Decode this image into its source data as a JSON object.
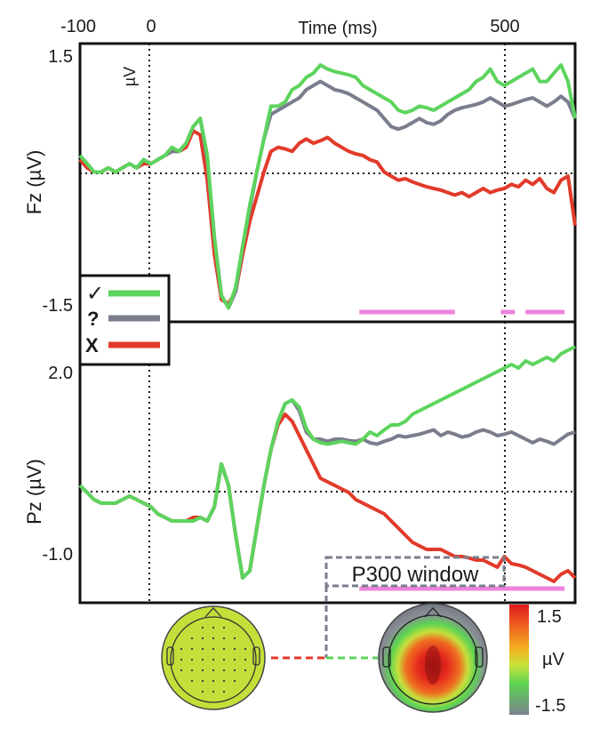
{
  "chart_data": [
    {
      "type": "line",
      "ylabel": "Fz (µV)",
      "unit_label": "µV",
      "xlabel": "Time (ms)",
      "xlim": [
        -100,
        600
      ],
      "ylim": [
        -1.62,
        1.76
      ],
      "x_ticks": [
        -100,
        0,
        500
      ],
      "x_tick_labels": [
        "-100",
        "0",
        "500"
      ],
      "y_tick_labels": [
        {
          "value": 1.5,
          "label": "1.5"
        },
        {
          "value": -1.5,
          "label": "-1.5"
        }
      ],
      "grid": "dotted lines at x=0, x=500 and y=0",
      "legend": {
        "placement": "bottom-left",
        "entries": [
          {
            "symbol": "✓",
            "color": "#5dd45d"
          },
          {
            "symbol": "?",
            "color": "#7a7d8c"
          },
          {
            "symbol": "X",
            "color": "#e23a2a"
          }
        ]
      },
      "x": [
        -100,
        -90,
        -80,
        -70,
        -60,
        -50,
        -40,
        -30,
        -20,
        -10,
        0,
        10,
        20,
        30,
        40,
        50,
        60,
        70,
        80,
        90,
        100,
        110,
        120,
        130,
        140,
        150,
        160,
        170,
        180,
        190,
        200,
        210,
        220,
        230,
        240,
        250,
        260,
        270,
        280,
        290,
        300,
        310,
        320,
        330,
        340,
        350,
        360,
        370,
        380,
        390,
        400,
        410,
        420,
        430,
        440,
        450,
        460,
        470,
        480,
        490,
        500,
        510,
        520,
        530,
        540,
        550,
        560,
        570,
        580,
        590,
        600
      ],
      "series": [
        {
          "symbol": "✓",
          "color": "#5dd45d",
          "values": [
            0.4,
            0.3,
            0.2,
            0.2,
            0.25,
            0.2,
            0.25,
            0.3,
            0.25,
            0.35,
            0.3,
            0.35,
            0.4,
            0.5,
            0.45,
            0.55,
            0.75,
            0.85,
            0.4,
            -0.6,
            -1.3,
            -1.45,
            -1.2,
            -0.7,
            -0.2,
            0.2,
            0.6,
            1.0,
            1.0,
            1.05,
            1.2,
            1.25,
            1.35,
            1.4,
            1.5,
            1.45,
            1.42,
            1.4,
            1.38,
            1.35,
            1.25,
            1.2,
            1.15,
            1.1,
            1.05,
            0.95,
            0.92,
            0.95,
            1.0,
            0.98,
            0.95,
            1.0,
            1.05,
            1.1,
            1.15,
            1.2,
            1.3,
            1.35,
            1.45,
            1.3,
            1.25,
            1.3,
            1.35,
            1.4,
            1.45,
            1.3,
            1.3,
            1.4,
            1.5,
            1.3,
            0.85
          ]
        },
        {
          "symbol": "?",
          "color": "#7a7d8c",
          "values": [
            0.4,
            0.3,
            0.2,
            0.2,
            0.25,
            0.2,
            0.25,
            0.3,
            0.25,
            0.35,
            0.3,
            0.35,
            0.4,
            0.45,
            0.45,
            0.55,
            0.75,
            0.85,
            0.35,
            -0.6,
            -1.3,
            -1.45,
            -1.25,
            -0.7,
            -0.25,
            0.2,
            0.6,
            0.9,
            0.95,
            1.0,
            1.05,
            1.1,
            1.2,
            1.25,
            1.3,
            1.25,
            1.2,
            1.18,
            1.15,
            1.1,
            1.05,
            1.0,
            0.95,
            0.85,
            0.75,
            0.72,
            0.75,
            0.8,
            0.85,
            0.8,
            0.78,
            0.82,
            0.9,
            0.95,
            0.98,
            1.0,
            1.02,
            1.05,
            1.1,
            1.05,
            1.0,
            1.02,
            1.05,
            1.08,
            1.1,
            1.05,
            1.0,
            1.05,
            1.12,
            1.05,
            0.85
          ]
        },
        {
          "symbol": "X",
          "color": "#e23a2a",
          "values": [
            0.35,
            0.25,
            0.2,
            0.2,
            0.25,
            0.2,
            0.25,
            0.3,
            0.25,
            0.3,
            0.3,
            0.35,
            0.4,
            0.45,
            0.45,
            0.5,
            0.7,
            0.65,
            0.1,
            -0.8,
            -1.35,
            -1.4,
            -1.25,
            -0.8,
            -0.4,
            -0.1,
            0.2,
            0.45,
            0.5,
            0.48,
            0.45,
            0.55,
            0.6,
            0.55,
            0.58,
            0.62,
            0.55,
            0.5,
            0.45,
            0.42,
            0.4,
            0.35,
            0.32,
            0.2,
            0.15,
            0.1,
            0.12,
            0.08,
            0.05,
            0.02,
            0.0,
            -0.02,
            -0.05,
            -0.08,
            -0.05,
            -0.1,
            -0.05,
            0.0,
            -0.05,
            -0.02,
            0.0,
            0.05,
            0.02,
            0.1,
            0.05,
            0.12,
            0.0,
            -0.05,
            0.1,
            0.15,
            -0.45
          ]
        }
      ],
      "significance_bars": [
        {
          "x0": 295,
          "x1": 430,
          "color": "#ee82dd"
        },
        {
          "x0": 495,
          "x1": 515,
          "color": "#ee82dd"
        },
        {
          "x0": 530,
          "x1": 585,
          "color": "#ee82dd"
        }
      ]
    },
    {
      "type": "line",
      "ylabel": "Pz (µV)",
      "xlim": [
        -100,
        600
      ],
      "ylim": [
        -1.35,
        2.6
      ],
      "y_tick_labels": [
        {
          "value": 2.0,
          "label": "2.0"
        },
        {
          "value": -1.0,
          "label": "-1.0"
        }
      ],
      "grid": "dotted lines at x=0, x=500 and y=0",
      "x": [
        -100,
        -90,
        -80,
        -70,
        -60,
        -50,
        -40,
        -30,
        -20,
        -10,
        0,
        10,
        20,
        30,
        40,
        50,
        60,
        70,
        80,
        90,
        100,
        110,
        120,
        130,
        140,
        150,
        160,
        170,
        180,
        190,
        200,
        210,
        220,
        230,
        240,
        250,
        260,
        270,
        280,
        290,
        300,
        310,
        320,
        330,
        340,
        350,
        360,
        370,
        380,
        390,
        400,
        410,
        420,
        430,
        440,
        450,
        460,
        470,
        480,
        490,
        500,
        510,
        520,
        530,
        540,
        550,
        560,
        570,
        580,
        590,
        600
      ],
      "series": [
        {
          "symbol": "✓",
          "color": "#5dd45d",
          "values": [
            0.3,
            0.2,
            0.1,
            0.05,
            0.05,
            0.05,
            0.1,
            0.15,
            0.1,
            0.05,
            0.0,
            -0.1,
            -0.15,
            -0.2,
            -0.2,
            -0.2,
            -0.2,
            -0.15,
            -0.2,
            0.0,
            0.6,
            0.3,
            -0.4,
            -1.0,
            -0.9,
            -0.3,
            0.3,
            0.8,
            1.2,
            1.45,
            1.5,
            1.4,
            1.1,
            0.95,
            0.9,
            0.88,
            0.9,
            0.92,
            0.9,
            0.88,
            0.95,
            1.05,
            1.0,
            1.08,
            1.15,
            1.15,
            1.2,
            1.3,
            1.35,
            1.4,
            1.45,
            1.5,
            1.55,
            1.6,
            1.65,
            1.7,
            1.75,
            1.8,
            1.85,
            1.9,
            1.95,
            2.0,
            1.95,
            2.05,
            2.0,
            2.05,
            2.1,
            2.05,
            2.15,
            2.2,
            2.25
          ]
        },
        {
          "symbol": "?",
          "color": "#7a7d8c",
          "values": [
            0.3,
            0.2,
            0.1,
            0.05,
            0.05,
            0.05,
            0.1,
            0.15,
            0.1,
            0.05,
            0.0,
            -0.1,
            -0.15,
            -0.2,
            -0.2,
            -0.2,
            -0.2,
            -0.15,
            -0.2,
            0.0,
            0.6,
            0.3,
            -0.4,
            -1.0,
            -0.9,
            -0.3,
            0.3,
            0.8,
            1.2,
            1.45,
            1.5,
            1.35,
            1.05,
            0.95,
            0.95,
            0.92,
            0.95,
            0.95,
            0.93,
            0.92,
            0.95,
            0.9,
            0.88,
            0.92,
            0.95,
            1.0,
            0.98,
            1.0,
            1.02,
            1.05,
            1.08,
            1.0,
            1.05,
            1.02,
            0.98,
            1.0,
            1.05,
            1.08,
            1.05,
            1.0,
            1.02,
            1.05,
            1.0,
            0.95,
            0.9,
            0.95,
            0.92,
            0.88,
            0.95,
            1.02,
            1.05
          ]
        },
        {
          "symbol": "X",
          "color": "#e23a2a",
          "values": [
            0.3,
            0.2,
            0.1,
            0.05,
            0.05,
            0.05,
            0.1,
            0.15,
            0.1,
            0.05,
            0.0,
            -0.1,
            -0.15,
            -0.2,
            -0.2,
            -0.2,
            -0.15,
            -0.15,
            -0.2,
            0.0,
            0.6,
            0.3,
            -0.4,
            -1.0,
            -0.9,
            -0.3,
            0.3,
            0.8,
            1.15,
            1.3,
            1.2,
            1.0,
            0.8,
            0.6,
            0.4,
            0.35,
            0.3,
            0.25,
            0.2,
            0.1,
            0.05,
            0.0,
            -0.05,
            -0.1,
            -0.2,
            -0.3,
            -0.4,
            -0.5,
            -0.55,
            -0.6,
            -0.6,
            -0.6,
            -0.65,
            -0.7,
            -0.7,
            -0.72,
            -0.75,
            -0.75,
            -0.8,
            -0.85,
            -0.7,
            -0.8,
            -0.82,
            -0.85,
            -0.9,
            -0.95,
            -1.0,
            -1.05,
            -0.95,
            -0.9,
            -1.0
          ]
        }
      ],
      "significance_bars": [
        {
          "x0": 295,
          "x1": 585,
          "color": "#ee82dd"
        }
      ],
      "annotation": "P300 window"
    }
  ],
  "colorbar": {
    "labels": [
      "1.5",
      "µV",
      "-1.5"
    ],
    "colors": [
      "#e0191a",
      "#ee6420",
      "#f4b021",
      "#c8e13c",
      "#5cd452",
      "#7d818f"
    ]
  },
  "topomaps": {
    "connector_colors": [
      "#e23a2a",
      "#5dd45d"
    ],
    "box_color": "#7a7d8c"
  }
}
